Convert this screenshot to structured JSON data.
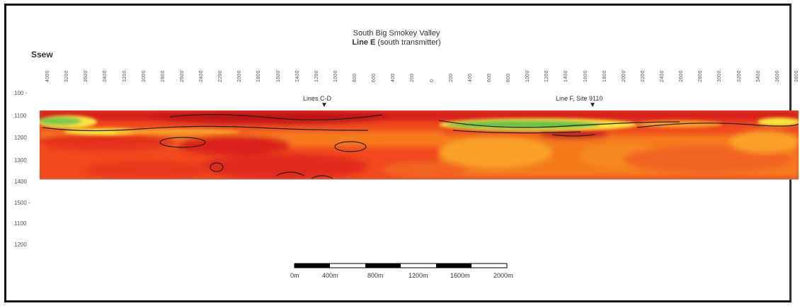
{
  "title": {
    "line1": "South Big Smokey Valley",
    "line2_bold": "Line E",
    "line2_rest": " (south transmitter)"
  },
  "direction_label": "Ssew",
  "wells": [
    {
      "label": "Lines C-D"
    },
    {
      "label": "Line F, Site 9110"
    }
  ],
  "depth_axis": [
    "100 -",
    "1100",
    "1200",
    "1300",
    "1400",
    "1500 -",
    "1100",
    "1200"
  ],
  "stations": [
    "4000",
    "3200",
    "3600",
    "3400",
    "3200",
    "3000",
    "2800",
    "2600",
    "2400",
    "2200",
    "2000",
    "1800",
    "1600",
    "1400",
    "1200",
    "1000",
    "800",
    "600",
    "400",
    "200",
    "0",
    "200",
    "400",
    "600",
    "800",
    "1000",
    "1200",
    "1400",
    "1600",
    "1800",
    "2000",
    "2200",
    "2400",
    "2600",
    "2800",
    "3000",
    "3200",
    "3400",
    "3600",
    "3800"
  ],
  "scale_bar": {
    "labels": [
      "0m",
      "400m",
      "800m",
      "1200m",
      "1600m",
      "2000m"
    ]
  },
  "colors": {
    "deep_red": "#c4141a",
    "red": "#e5301c",
    "orange_red": "#f04a1e",
    "orange": "#f47a1f",
    "light_orange": "#f9a02c",
    "yellow": "#f6e43a",
    "green": "#6cc44a"
  }
}
